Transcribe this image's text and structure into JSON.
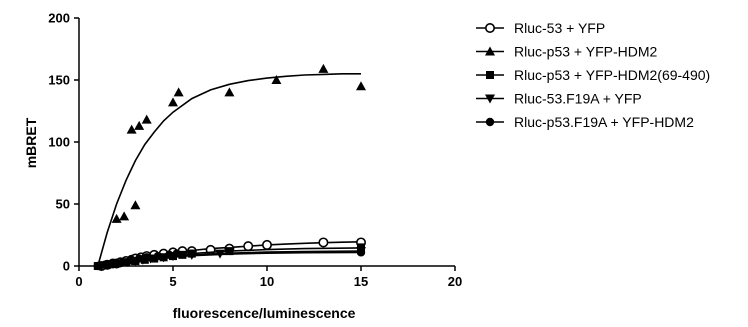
{
  "chart_data": {
    "type": "scatter",
    "title": "",
    "xlabel": "fluorescence/luminescence",
    "ylabel": "mBRET",
    "xlim": [
      0,
      20
    ],
    "ylim": [
      0,
      200
    ],
    "xticks": [
      0,
      5,
      10,
      15,
      20
    ],
    "yticks": [
      0,
      50,
      100,
      150,
      200
    ],
    "grid": false,
    "legend_position": "right",
    "series": [
      {
        "name": "Rluc-53 + YFP",
        "marker": "circle-open",
        "x": [
          1.2,
          1.5,
          1.8,
          2.0,
          2.2,
          2.5,
          2.8,
          3.0,
          3.3,
          3.6,
          4.0,
          4.5,
          5.0,
          5.5,
          6.0,
          7.0,
          8.0,
          9.0,
          10.0,
          13.0,
          15.0
        ],
        "y": [
          0,
          1,
          2,
          2,
          3,
          4,
          5,
          6,
          7,
          8,
          9,
          10,
          11,
          12,
          12,
          13,
          14,
          16,
          17,
          19,
          19
        ],
        "fit": [
          [
            1.0,
            0
          ],
          [
            2,
            3.5
          ],
          [
            3,
            6.5
          ],
          [
            4,
            9
          ],
          [
            5,
            11
          ],
          [
            6,
            12.5
          ],
          [
            7,
            14
          ],
          [
            8,
            15
          ],
          [
            9,
            16
          ],
          [
            10,
            17
          ],
          [
            11,
            17.7
          ],
          [
            12,
            18.3
          ],
          [
            13,
            18.8
          ],
          [
            14,
            19.2
          ],
          [
            15,
            19.5
          ]
        ]
      },
      {
        "name": "Rluc-p53 + YFP-HDM2",
        "marker": "triangle-up",
        "x": [
          2.0,
          2.4,
          2.8,
          3.0,
          3.2,
          3.6,
          5.0,
          5.3,
          8.0,
          10.5,
          13.0,
          15.0
        ],
        "y": [
          38,
          40,
          110,
          49,
          113,
          118,
          132,
          140,
          140,
          150,
          159,
          145
        ],
        "fit": [
          [
            1.0,
            0
          ],
          [
            1.5,
            27
          ],
          [
            2,
            50
          ],
          [
            2.5,
            69
          ],
          [
            3,
            85
          ],
          [
            3.5,
            98
          ],
          [
            4,
            108
          ],
          [
            4.5,
            117
          ],
          [
            5,
            124
          ],
          [
            6,
            135
          ],
          [
            7,
            142
          ],
          [
            8,
            146.5
          ],
          [
            9,
            149.5
          ],
          [
            10,
            151.5
          ],
          [
            11,
            153
          ],
          [
            12,
            154
          ],
          [
            13,
            154.5
          ],
          [
            14,
            155
          ],
          [
            15,
            155
          ]
        ]
      },
      {
        "name": "Rluc-p53 + YFP-HDM2(69-490)",
        "marker": "square",
        "x": [
          1.0,
          1.5,
          2.0,
          2.5,
          3.0,
          3.5,
          4.0,
          4.5,
          5.0,
          5.5,
          6.0,
          8.0,
          15.0
        ],
        "y": [
          0,
          1,
          2,
          3,
          4,
          5,
          6,
          7,
          8,
          9,
          10,
          12,
          15
        ],
        "fit": [
          [
            1.0,
            0
          ],
          [
            2,
            2.5
          ],
          [
            3,
            4.8
          ],
          [
            4,
            6.8
          ],
          [
            5,
            8.5
          ],
          [
            6,
            10
          ],
          [
            8,
            12
          ],
          [
            10,
            13.2
          ],
          [
            12,
            14
          ],
          [
            15,
            14.6
          ]
        ]
      },
      {
        "name": "Rluc-53.F19A + YFP",
        "marker": "triangle-down",
        "x": [
          1.2,
          1.6,
          2.0,
          2.6,
          3.0,
          3.4,
          3.8,
          4.5,
          5.0,
          6.0,
          7.5,
          15.0
        ],
        "y": [
          0,
          1,
          2,
          3,
          4,
          5,
          6,
          7,
          8,
          9,
          10,
          12
        ],
        "fit": [
          [
            1.0,
            0
          ],
          [
            2,
            2
          ],
          [
            3,
            4
          ],
          [
            4,
            6
          ],
          [
            5,
            7.5
          ],
          [
            6,
            8.8
          ],
          [
            8,
            10.3
          ],
          [
            10,
            11.2
          ],
          [
            12,
            11.7
          ],
          [
            15,
            12
          ]
        ]
      },
      {
        "name": "Rluc-p53.F19A + YFP-HDM2",
        "marker": "circle-filled",
        "x": [
          1.0,
          1.4,
          1.8,
          2.3,
          2.8,
          3.2,
          3.6,
          4.2,
          4.8,
          5.2,
          6.0,
          15.0
        ],
        "y": [
          0,
          1,
          2,
          3,
          5,
          6,
          7,
          8,
          9,
          10,
          10,
          11
        ],
        "fit": [
          [
            1.0,
            0
          ],
          [
            2,
            2.2
          ],
          [
            3,
            4.3
          ],
          [
            4,
            6
          ],
          [
            5,
            7.3
          ],
          [
            6,
            8.3
          ],
          [
            8,
            9.6
          ],
          [
            10,
            10.3
          ],
          [
            12,
            10.7
          ],
          [
            15,
            11
          ]
        ]
      }
    ]
  }
}
